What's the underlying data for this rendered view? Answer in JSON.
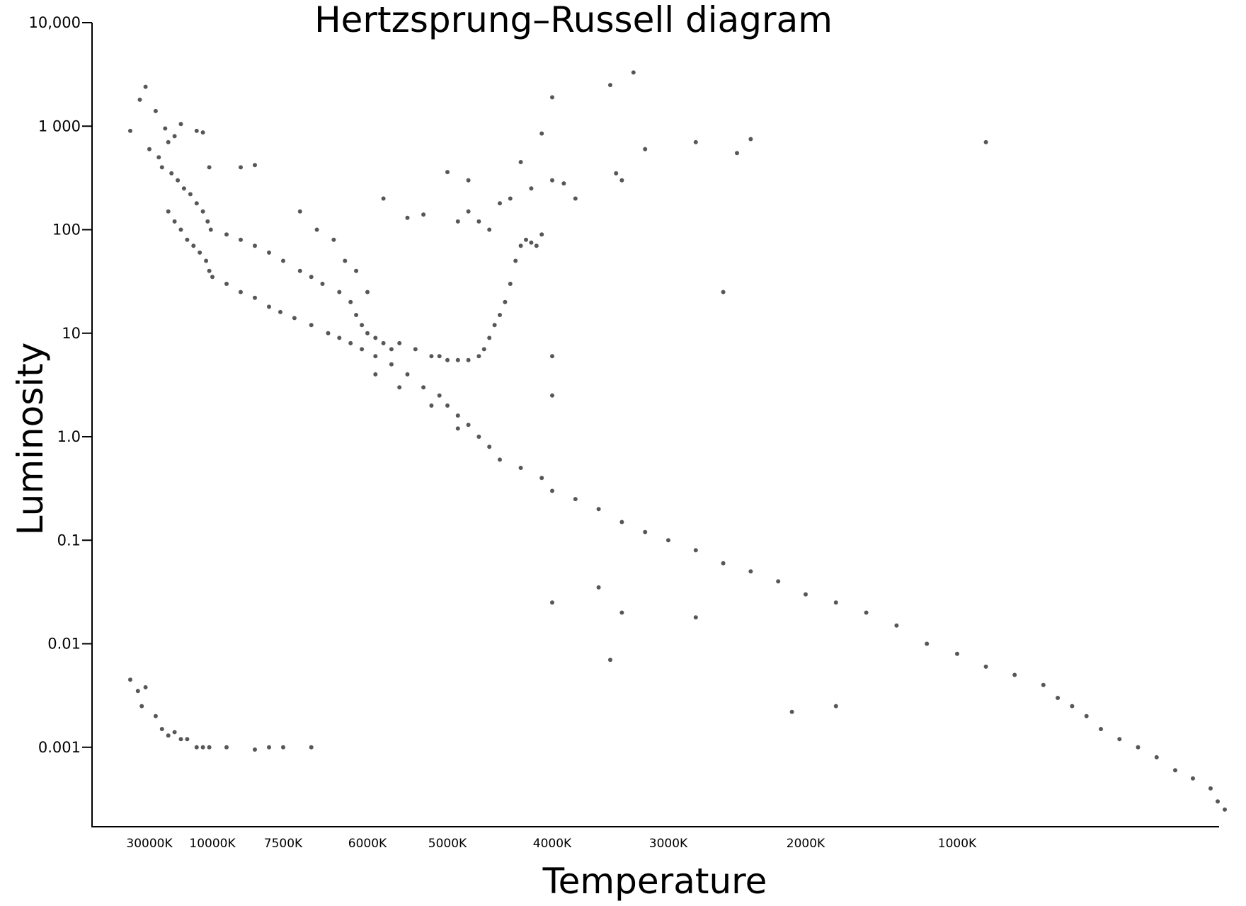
{
  "chart_data": {
    "type": "scatter",
    "title": "Hertzsprung–Russell diagram",
    "xlabel": "Temperature",
    "ylabel": "Luminosity",
    "y_scale": "log",
    "ylim": [
      0.0002,
      10000
    ],
    "x_direction": "decreasing temperature to the right",
    "grid": false,
    "legend": "none",
    "point_color": "#3a3a3a",
    "y_ticks": [
      {
        "value": 10000,
        "label": "10,000"
      },
      {
        "value": 1000,
        "label": "1 000"
      },
      {
        "value": 100,
        "label": "100"
      },
      {
        "value": 10,
        "label": "10"
      },
      {
        "value": 1,
        "label": "1.0"
      },
      {
        "value": 0.1,
        "label": "0.1"
      },
      {
        "value": 0.01,
        "label": "0.01"
      },
      {
        "value": 0.001,
        "label": "0.001"
      }
    ],
    "x_ticks": [
      {
        "value": 30000,
        "label": "30000K"
      },
      {
        "value": 10000,
        "label": "10000K"
      },
      {
        "value": 7500,
        "label": "7500K"
      },
      {
        "value": 6000,
        "label": "6000K"
      },
      {
        "value": 5000,
        "label": "5000K"
      },
      {
        "value": 4000,
        "label": "4000K"
      },
      {
        "value": 3000,
        "label": "3000K"
      },
      {
        "value": 2000,
        "label": "2000K"
      },
      {
        "value": 1000,
        "label": "1000K"
      }
    ],
    "points": [
      [
        40000,
        900
      ],
      [
        35000,
        1800
      ],
      [
        32000,
        2400
      ],
      [
        28000,
        1400
      ],
      [
        30000,
        600
      ],
      [
        25000,
        950
      ],
      [
        20000,
        1050
      ],
      [
        22000,
        800
      ],
      [
        24000,
        700
      ],
      [
        27000,
        500
      ],
      [
        15000,
        900
      ],
      [
        13000,
        870
      ],
      [
        11000,
        400
      ],
      [
        9000,
        400
      ],
      [
        8500,
        420
      ],
      [
        26000,
        400
      ],
      [
        23000,
        350
      ],
      [
        21000,
        300
      ],
      [
        19000,
        250
      ],
      [
        17000,
        220
      ],
      [
        15000,
        180
      ],
      [
        13000,
        150
      ],
      [
        11500,
        120
      ],
      [
        10500,
        100
      ],
      [
        9500,
        90
      ],
      [
        9000,
        80
      ],
      [
        8500,
        70
      ],
      [
        8000,
        60
      ],
      [
        7500,
        50
      ],
      [
        7200,
        40
      ],
      [
        7000,
        35
      ],
      [
        6800,
        30
      ],
      [
        6500,
        25
      ],
      [
        6300,
        20
      ],
      [
        6200,
        15
      ],
      [
        6100,
        12
      ],
      [
        6000,
        10
      ],
      [
        5900,
        9
      ],
      [
        5800,
        8
      ],
      [
        5700,
        7
      ],
      [
        24000,
        150
      ],
      [
        22000,
        120
      ],
      [
        20000,
        100
      ],
      [
        18000,
        80
      ],
      [
        16000,
        70
      ],
      [
        14000,
        60
      ],
      [
        12000,
        50
      ],
      [
        11000,
        40
      ],
      [
        10000,
        35
      ],
      [
        9500,
        30
      ],
      [
        9000,
        25
      ],
      [
        8500,
        22
      ],
      [
        8000,
        18
      ],
      [
        7600,
        16
      ],
      [
        7300,
        14
      ],
      [
        7000,
        12
      ],
      [
        6700,
        10
      ],
      [
        6500,
        9
      ],
      [
        6300,
        8
      ],
      [
        6100,
        7
      ],
      [
        5900,
        6
      ],
      [
        5700,
        5
      ],
      [
        5500,
        4
      ],
      [
        5300,
        3
      ],
      [
        5100,
        2.5
      ],
      [
        5000,
        2
      ],
      [
        4900,
        1.6
      ],
      [
        4800,
        1.3
      ],
      [
        4700,
        1.0
      ],
      [
        4600,
        0.8
      ],
      [
        4500,
        0.6
      ],
      [
        4300,
        0.5
      ],
      [
        4100,
        0.4
      ],
      [
        4000,
        0.3
      ],
      [
        3800,
        0.25
      ],
      [
        3600,
        0.2
      ],
      [
        3400,
        0.15
      ],
      [
        3200,
        0.12
      ],
      [
        3000,
        0.1
      ],
      [
        2800,
        0.08
      ],
      [
        2600,
        0.06
      ],
      [
        2400,
        0.05
      ],
      [
        2200,
        0.04
      ],
      [
        2000,
        0.03
      ],
      [
        1800,
        0.025
      ],
      [
        1600,
        0.02
      ],
      [
        1400,
        0.015
      ],
      [
        1200,
        0.01
      ],
      [
        1000,
        0.008
      ],
      [
        900,
        0.006
      ],
      [
        800,
        0.005
      ],
      [
        700,
        0.004
      ],
      [
        650,
        0.003
      ],
      [
        600,
        0.0025
      ],
      [
        550,
        0.002
      ],
      [
        500,
        0.0015
      ],
      [
        450,
        0.0012
      ],
      [
        400,
        0.001
      ],
      [
        350,
        0.0008
      ],
      [
        300,
        0.0006
      ],
      [
        250,
        0.0005
      ],
      [
        200,
        0.0004
      ],
      [
        180,
        0.0003
      ],
      [
        160,
        0.00025
      ],
      [
        5600,
        8
      ],
      [
        5400,
        7
      ],
      [
        5200,
        6
      ],
      [
        5100,
        6
      ],
      [
        5000,
        5.5
      ],
      [
        4900,
        5.5
      ],
      [
        4800,
        5.5
      ],
      [
        4700,
        6
      ],
      [
        4650,
        7
      ],
      [
        4600,
        9
      ],
      [
        4550,
        12
      ],
      [
        4500,
        15
      ],
      [
        4450,
        20
      ],
      [
        4400,
        30
      ],
      [
        4350,
        50
      ],
      [
        4300,
        70
      ],
      [
        4250,
        80
      ],
      [
        4200,
        75
      ],
      [
        4150,
        70
      ],
      [
        4100,
        90
      ],
      [
        4600,
        100
      ],
      [
        4700,
        120
      ],
      [
        4800,
        150
      ],
      [
        4900,
        120
      ],
      [
        4500,
        180
      ],
      [
        4400,
        200
      ],
      [
        4200,
        250
      ],
      [
        4000,
        300
      ],
      [
        3900,
        280
      ],
      [
        3800,
        200
      ],
      [
        5800,
        200
      ],
      [
        5500,
        130
      ],
      [
        5300,
        140
      ],
      [
        5000,
        360
      ],
      [
        4800,
        300
      ],
      [
        4300,
        450
      ],
      [
        4100,
        850
      ],
      [
        4000,
        1900
      ],
      [
        3500,
        2500
      ],
      [
        3300,
        3300
      ],
      [
        3200,
        600
      ],
      [
        2800,
        700
      ],
      [
        2500,
        550
      ],
      [
        2400,
        750
      ],
      [
        900,
        700
      ],
      [
        3400,
        300
      ],
      [
        3450,
        350
      ],
      [
        4000,
        2.5
      ],
      [
        2600,
        25
      ],
      [
        4000,
        6
      ],
      [
        4000,
        0.025
      ],
      [
        3600,
        0.035
      ],
      [
        3400,
        0.02
      ],
      [
        3500,
        0.007
      ],
      [
        2800,
        0.018
      ],
      [
        2100,
        0.0022
      ],
      [
        1800,
        0.0025
      ],
      [
        40000,
        0.0045
      ],
      [
        36000,
        0.0035
      ],
      [
        34000,
        0.0025
      ],
      [
        32000,
        0.0038
      ],
      [
        28000,
        0.002
      ],
      [
        26000,
        0.0015
      ],
      [
        24000,
        0.0013
      ],
      [
        22000,
        0.0014
      ],
      [
        20000,
        0.0012
      ],
      [
        18000,
        0.0012
      ],
      [
        15000,
        0.001
      ],
      [
        13000,
        0.001
      ],
      [
        11000,
        0.001
      ],
      [
        9500,
        0.001
      ],
      [
        8500,
        0.00095
      ],
      [
        8000,
        0.001
      ],
      [
        7500,
        0.001
      ],
      [
        7000,
        0.001
      ],
      [
        6000,
        25
      ],
      [
        6200,
        40
      ],
      [
        6400,
        50
      ],
      [
        6600,
        80
      ],
      [
        6900,
        100
      ],
      [
        7200,
        150
      ],
      [
        5900,
        4
      ],
      [
        5600,
        3
      ],
      [
        5200,
        2
      ],
      [
        4900,
        1.2
      ]
    ]
  }
}
